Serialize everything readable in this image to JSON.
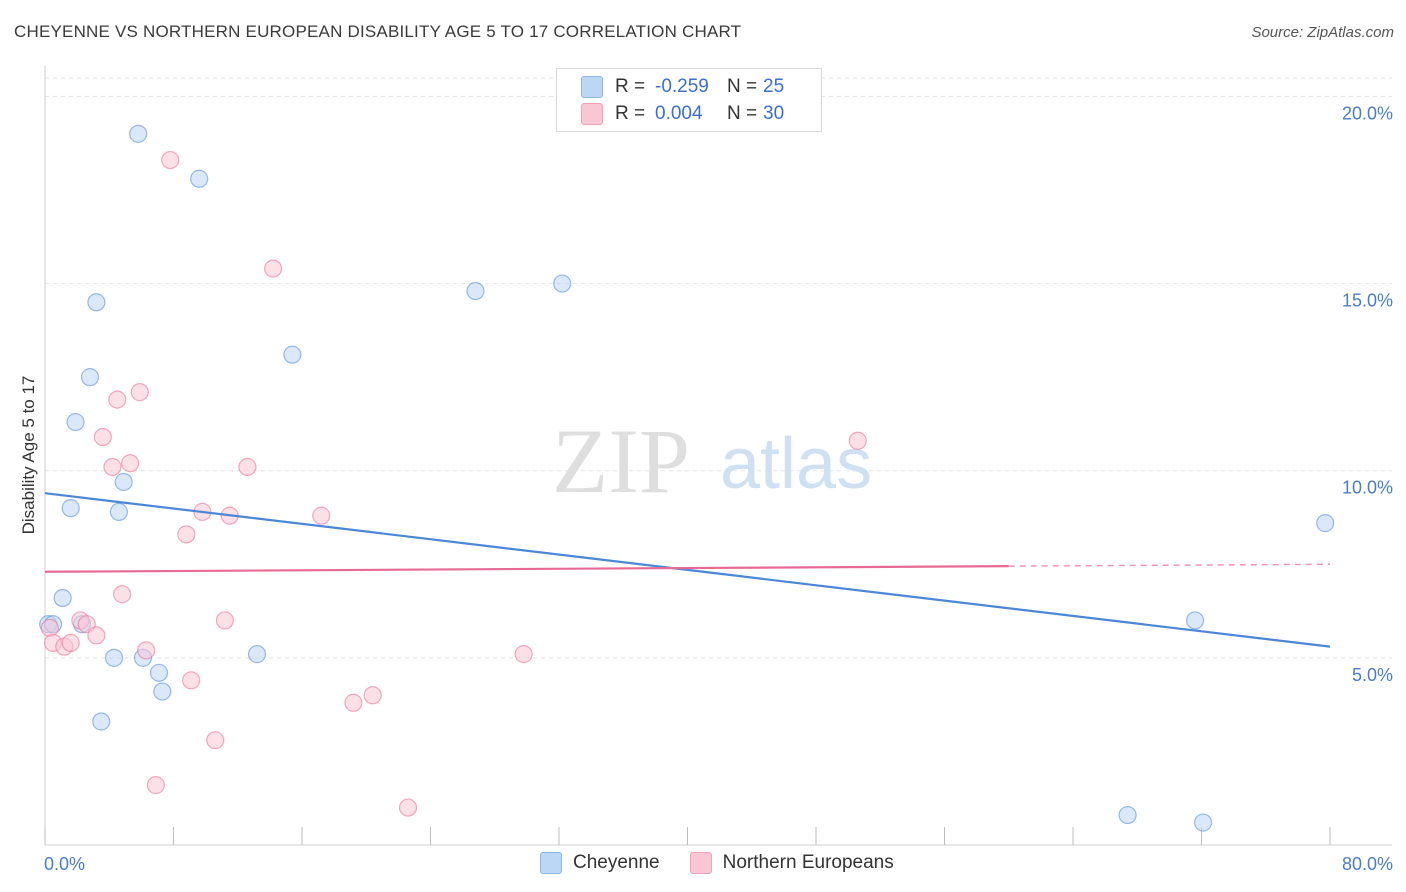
{
  "header": {
    "title": "CHEYENNE VS NORTHERN EUROPEAN DISABILITY AGE 5 TO 17 CORRELATION CHART",
    "source": "Source: ZipAtlas.com"
  },
  "watermark": {
    "zip": "ZIP",
    "atlas": "atlas"
  },
  "legend": {
    "rows": [
      {
        "r_label": "R =",
        "r_value": "-0.259",
        "n_label": "N =",
        "n_value": "25",
        "color": "#a9c8f0"
      },
      {
        "r_label": "R =",
        "r_value": "0.004",
        "n_label": "N =",
        "n_value": "30",
        "color": "#f5b8ca"
      }
    ]
  },
  "bottom_legend": {
    "items": [
      {
        "label": "Cheyenne",
        "color": "#a9c8f0"
      },
      {
        "label": "Northern Europeans",
        "color": "#f5b8ca"
      }
    ]
  },
  "chart_data": {
    "type": "scatter",
    "title": "CHEYENNE VS NORTHERN EUROPEAN DISABILITY AGE 5 TO 17 CORRELATION CHART",
    "xlabel": "",
    "ylabel": "Disability Age 5 to 17",
    "xlim": [
      0,
      80
    ],
    "ylim": [
      0,
      21
    ],
    "x_tick_labels": [
      "0.0%",
      "80.0%"
    ],
    "y_ticks": [
      5,
      10,
      15,
      20
    ],
    "y_tick_labels": [
      "5.0%",
      "10.0%",
      "15.0%",
      "20.0%"
    ],
    "grid": true,
    "series": [
      {
        "name": "Cheyenne",
        "color": "#4a87d8",
        "fill": "#bcd6f5",
        "points": [
          [
            0.2,
            5.9
          ],
          [
            0.5,
            5.9
          ],
          [
            1.1,
            6.6
          ],
          [
            1.6,
            9.0
          ],
          [
            1.9,
            11.3
          ],
          [
            2.3,
            5.9
          ],
          [
            2.8,
            12.5
          ],
          [
            3.2,
            14.5
          ],
          [
            3.5,
            3.3
          ],
          [
            4.3,
            5.0
          ],
          [
            4.6,
            8.9
          ],
          [
            4.9,
            9.7
          ],
          [
            5.8,
            19.0
          ],
          [
            6.1,
            5.0
          ],
          [
            7.1,
            4.6
          ],
          [
            7.3,
            4.1
          ],
          [
            9.6,
            17.8
          ],
          [
            13.2,
            5.1
          ],
          [
            15.4,
            13.1
          ],
          [
            26.8,
            14.8
          ],
          [
            32.2,
            15.0
          ],
          [
            67.4,
            0.8
          ],
          [
            71.6,
            6.0
          ],
          [
            72.1,
            0.6
          ],
          [
            79.7,
            8.6
          ]
        ],
        "trend": {
          "x": [
            0,
            80
          ],
          "y": [
            9.4,
            5.3
          ]
        }
      },
      {
        "name": "Northern Europeans",
        "color": "#e86a92",
        "fill": "#f8c6d5",
        "points": [
          [
            0.3,
            5.8
          ],
          [
            0.5,
            5.4
          ],
          [
            1.2,
            5.3
          ],
          [
            1.6,
            5.4
          ],
          [
            2.2,
            6.0
          ],
          [
            2.6,
            5.9
          ],
          [
            3.2,
            5.6
          ],
          [
            3.6,
            10.9
          ],
          [
            4.2,
            10.1
          ],
          [
            4.5,
            11.9
          ],
          [
            4.8,
            6.7
          ],
          [
            5.3,
            10.2
          ],
          [
            5.9,
            12.1
          ],
          [
            6.3,
            5.2
          ],
          [
            6.9,
            1.6
          ],
          [
            7.8,
            18.3
          ],
          [
            8.8,
            8.3
          ],
          [
            9.1,
            4.4
          ],
          [
            9.8,
            8.9
          ],
          [
            10.6,
            2.8
          ],
          [
            11.2,
            6.0
          ],
          [
            11.5,
            8.8
          ],
          [
            12.6,
            10.1
          ],
          [
            14.2,
            15.4
          ],
          [
            17.2,
            8.8
          ],
          [
            19.2,
            3.8
          ],
          [
            20.4,
            4.0
          ],
          [
            22.6,
            1.0
          ],
          [
            29.8,
            5.1
          ],
          [
            50.6,
            10.8
          ]
        ],
        "trend": {
          "x": [
            0,
            60
          ],
          "y": [
            7.3,
            7.45
          ]
        },
        "trend_dashed": {
          "x": [
            60,
            80
          ],
          "y": [
            7.45,
            7.5
          ]
        }
      }
    ]
  }
}
